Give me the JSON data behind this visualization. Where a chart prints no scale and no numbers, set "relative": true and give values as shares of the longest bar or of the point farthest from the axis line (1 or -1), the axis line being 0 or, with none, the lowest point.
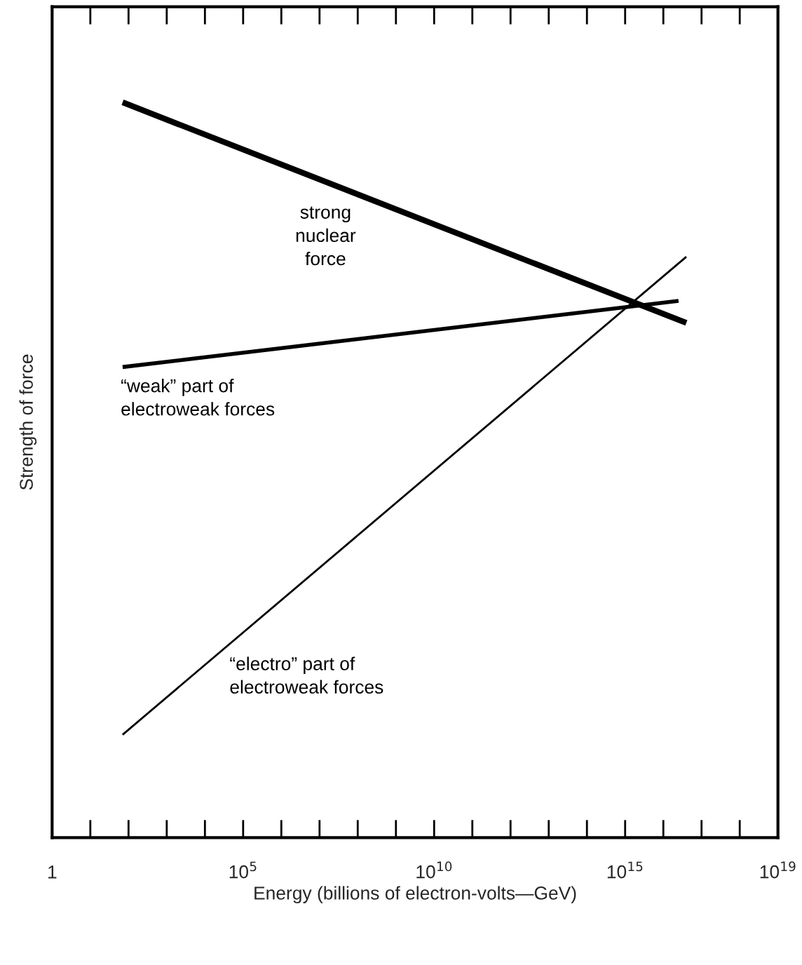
{
  "chart_data": {
    "type": "line",
    "xlabel": "Energy (billions of electron-volts—GeV)",
    "ylabel": "Strength of force",
    "log": "x",
    "relative": true,
    "tick_labels": "x",
    "grid": false,
    "legend": false,
    "marker": "none",
    "line_style": "solid",
    "xlim": [
      1,
      1e+19
    ],
    "xticks": [
      {
        "value": 1,
        "label": "1"
      },
      {
        "value": 10,
        "label": null
      },
      {
        "value": 100,
        "label": null
      },
      {
        "value": 1000,
        "label": null
      },
      {
        "value": 10000,
        "label": null
      },
      {
        "value": 100000,
        "label": "10$^{5}$"
      },
      {
        "value": 1000000,
        "label": null
      },
      {
        "value": 10000000,
        "label": null
      },
      {
        "value": 100000000,
        "label": null
      },
      {
        "value": 1000000000,
        "label": null
      },
      {
        "value": 10000000000,
        "label": "10$^{10}$"
      },
      {
        "value": 100000000000.0,
        "label": null
      },
      {
        "value": 1000000000000.0,
        "label": null
      },
      {
        "value": 10000000000000.0,
        "label": null
      },
      {
        "value": 100000000000000.0,
        "label": null
      },
      {
        "value": 1000000000000000.0,
        "label": "10$^{15}$"
      },
      {
        "value": 1e+16,
        "label": null
      },
      {
        "value": 1e+17,
        "label": null
      },
      {
        "value": 1e+18,
        "label": null
      },
      {
        "value": 1e+19,
        "label": "10$^{19}$"
      }
    ],
    "series": [
      {
        "name": "strong\nnuclear\nforce",
        "color": "#000000",
        "x": [
          70,
          4e+16
        ],
        "values": [
          1.0,
          0.7
        ]
      },
      {
        "name": "“weak” part of\nelectroweak forces",
        "color": "#000000",
        "x": [
          70,
          2.5e+16
        ],
        "values": [
          0.64,
          0.73
        ]
      },
      {
        "name": "“electro” part of\nelectroweak forces",
        "color": "#000000",
        "x": [
          70,
          4e+16
        ],
        "values": [
          0.14,
          0.79
        ]
      }
    ]
  }
}
